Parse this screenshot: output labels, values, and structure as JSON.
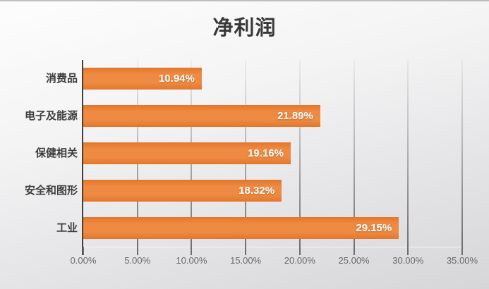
{
  "title": "净利润",
  "colors": {
    "bar": "#ED7D31",
    "bar_label_text": "#FFFFFF",
    "title_text": "#383838",
    "category_label_text": "#3F3F3F",
    "axis_label_text": "#696969",
    "axis_line": "#3F3F3F",
    "background_top": "#FDFDFD",
    "background_bottom": "#D6D6D8"
  },
  "chart_data": {
    "type": "bar",
    "orientation": "horizontal",
    "title": "净利润",
    "categories": [
      "消费品",
      "电子及能源",
      "保健相关",
      "安全和图形",
      "工业"
    ],
    "values": [
      10.94,
      21.89,
      19.16,
      18.32,
      29.15
    ],
    "data_labels": [
      "10.94%",
      "21.89%",
      "19.16%",
      "18.32%",
      "29.15%"
    ],
    "xlabel": "",
    "ylabel": "",
    "xlim": [
      0,
      35
    ],
    "x_tick_step": 5,
    "x_tick_labels": [
      "0.00%",
      "5.00%",
      "10.00%",
      "15.00%",
      "20.00%",
      "25.00%",
      "30.00%",
      "35.00%"
    ],
    "grid": true,
    "legend": false,
    "data_label_position": "inside-end"
  }
}
